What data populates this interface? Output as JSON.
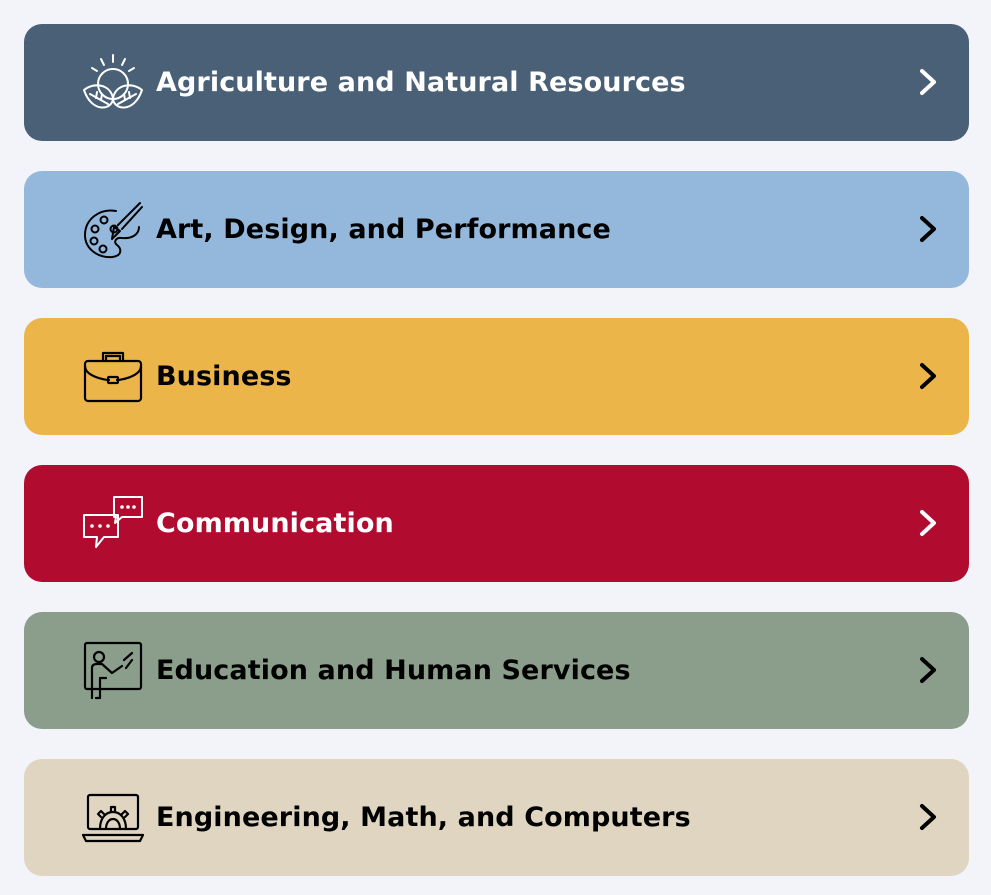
{
  "categories": [
    {
      "label": "Agriculture and Natural Resources",
      "icon": "sun-leaves-icon",
      "bg": "#4a6076",
      "theme": "dark"
    },
    {
      "label": "Art, Design, and Performance",
      "icon": "palette-brush-icon",
      "bg": "#94b8db",
      "theme": "light"
    },
    {
      "label": "Business",
      "icon": "briefcase-icon",
      "bg": "#ebb54a",
      "theme": "light"
    },
    {
      "label": "Communication",
      "icon": "speech-bubbles-icon",
      "bg": "#b10c30",
      "theme": "dark"
    },
    {
      "label": "Education and Human Services",
      "icon": "teacher-board-icon",
      "bg": "#8a9e8b",
      "theme": "light"
    },
    {
      "label": "Engineering, Math, and Computers",
      "icon": "laptop-gear-icon",
      "bg": "#e0d5c1",
      "theme": "light"
    }
  ],
  "page_background": "#f3f4fa"
}
